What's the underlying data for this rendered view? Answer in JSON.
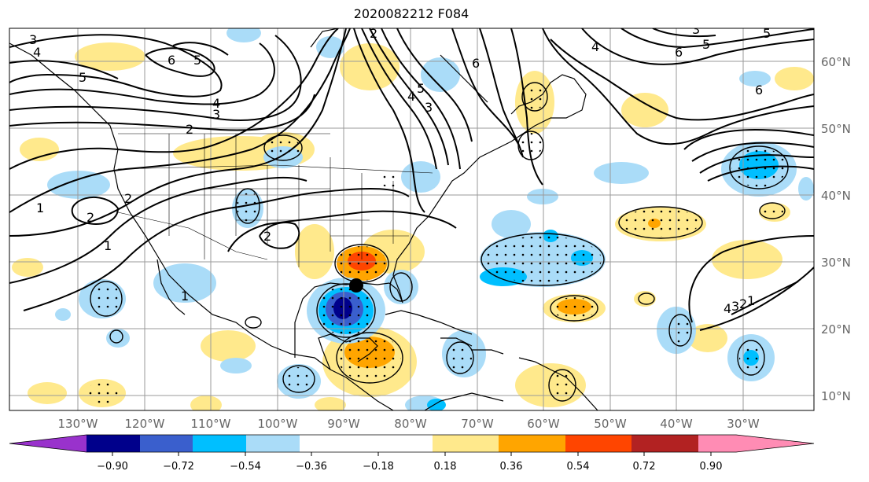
{
  "title": "2020082212 F084",
  "lat_labels": [
    "60°N",
    "50°N",
    "40°N",
    "30°N",
    "20°N",
    "10°N"
  ],
  "lon_labels": [
    "130°W",
    "120°W",
    "110°W",
    "100°W",
    "90°W",
    "80°W",
    "70°W",
    "60°W",
    "50°W",
    "40°W",
    "30°W"
  ],
  "contour_labels": [
    "3",
    "4",
    "5",
    "6",
    "5",
    "4",
    "3",
    "2",
    "2",
    "1",
    "1",
    "2",
    "2",
    "1",
    "2",
    "3",
    "4",
    "5",
    "6",
    "4",
    "3",
    "5",
    "6",
    "6",
    "5",
    "4",
    "3",
    "2",
    "1"
  ],
  "colorbar": {
    "ticks": [
      "−0.90",
      "−0.72",
      "−0.54",
      "−0.36",
      "−0.18",
      "0.18",
      "0.36",
      "0.54",
      "0.72",
      "0.90"
    ],
    "colors": [
      "#9932cc",
      "#00008b",
      "#3a5fcd",
      "#00bfff",
      "#aadcf8",
      "#ffffff",
      "#ffe98c",
      "#ffa500",
      "#ff4500",
      "#b22222",
      "#ff8cb4"
    ]
  },
  "colors": {
    "pos_weak": "#ffe98c",
    "pos_mid": "#ffa500",
    "pos_strong": "#ff4500",
    "neg_weak": "#aadcf8",
    "neg_mid": "#00bfff",
    "neg_strong": "#3a5fcd",
    "neg_max": "#00008b",
    "marker": "#000000"
  }
}
